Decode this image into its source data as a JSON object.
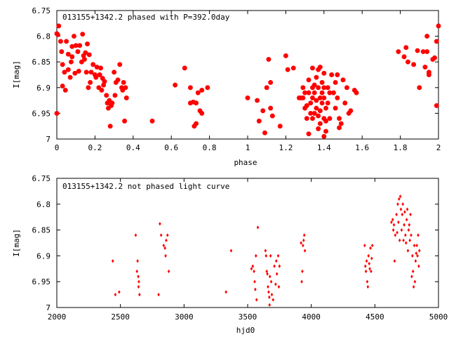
{
  "chart_data": [
    {
      "type": "scatter",
      "title": "013155+1342.2 phased with P=392.0day",
      "xlabel": "phase",
      "ylabel": "I[mag]",
      "xlim": [
        0,
        2
      ],
      "ylim": [
        6.75,
        7
      ],
      "y_inverted": true,
      "grid": false,
      "marker": "filled-octagon",
      "color": "#ff0000",
      "xticks": [
        "0",
        "0.2",
        "0.4",
        "0.6",
        "0.8",
        "1",
        "1.2",
        "1.4",
        "1.6",
        "1.8",
        "2"
      ],
      "yticks": [
        "6.75",
        "6.8",
        "6.85",
        "6.9",
        "6.95",
        "7"
      ],
      "points": [
        [
          0.0,
          6.95
        ],
        [
          0.0,
          6.795
        ],
        [
          0.005,
          6.797
        ],
        [
          0.01,
          6.78
        ],
        [
          0.02,
          6.81
        ],
        [
          0.025,
          6.83
        ],
        [
          0.03,
          6.855
        ],
        [
          0.03,
          6.897
        ],
        [
          0.04,
          6.87
        ],
        [
          0.045,
          6.905
        ],
        [
          0.05,
          6.81
        ],
        [
          0.06,
          6.835
        ],
        [
          0.06,
          6.865
        ],
        [
          0.07,
          6.88
        ],
        [
          0.075,
          6.85
        ],
        [
          0.08,
          6.82
        ],
        [
          0.08,
          6.84
        ],
        [
          0.09,
          6.8
        ],
        [
          0.095,
          6.872
        ],
        [
          0.1,
          6.818
        ],
        [
          0.11,
          6.83
        ],
        [
          0.115,
          6.868
        ],
        [
          0.12,
          6.818
        ],
        [
          0.13,
          6.85
        ],
        [
          0.135,
          6.796
        ],
        [
          0.14,
          6.838
        ],
        [
          0.145,
          6.845
        ],
        [
          0.15,
          6.832
        ],
        [
          0.155,
          6.87
        ],
        [
          0.16,
          6.815
        ],
        [
          0.165,
          6.9
        ],
        [
          0.17,
          6.836
        ],
        [
          0.175,
          6.89
        ],
        [
          0.18,
          6.87
        ],
        [
          0.19,
          6.855
        ],
        [
          0.2,
          6.875
        ],
        [
          0.205,
          6.88
        ],
        [
          0.21,
          6.86
        ],
        [
          0.22,
          6.9
        ],
        [
          0.225,
          6.875
        ],
        [
          0.23,
          6.862
        ],
        [
          0.235,
          6.905
        ],
        [
          0.24,
          6.882
        ],
        [
          0.245,
          6.895
        ],
        [
          0.25,
          6.888
        ],
        [
          0.26,
          6.915
        ],
        [
          0.265,
          6.93
        ],
        [
          0.27,
          6.94
        ],
        [
          0.275,
          6.925
        ],
        [
          0.28,
          6.975
        ],
        [
          0.285,
          6.935
        ],
        [
          0.29,
          6.93
        ],
        [
          0.3,
          6.87
        ],
        [
          0.305,
          6.915
        ],
        [
          0.31,
          6.89
        ],
        [
          0.32,
          6.885
        ],
        [
          0.33,
          6.855
        ],
        [
          0.34,
          6.9
        ],
        [
          0.345,
          6.905
        ],
        [
          0.35,
          6.89
        ],
        [
          0.355,
          6.965
        ],
        [
          0.36,
          6.9
        ],
        [
          0.365,
          6.92
        ],
        [
          0.5,
          6.965
        ],
        [
          0.62,
          6.895
        ],
        [
          0.67,
          6.862
        ],
        [
          0.7,
          6.9
        ],
        [
          0.7,
          6.93
        ],
        [
          0.715,
          6.928
        ],
        [
          0.72,
          6.975
        ],
        [
          0.73,
          6.93
        ],
        [
          0.73,
          6.97
        ],
        [
          0.74,
          6.91
        ],
        [
          0.75,
          6.945
        ],
        [
          0.76,
          6.95
        ],
        [
          0.76,
          6.905
        ],
        [
          0.79,
          6.9
        ],
        [
          1.0,
          6.92
        ],
        [
          1.05,
          6.925
        ],
        [
          1.06,
          6.965
        ],
        [
          1.08,
          6.945
        ],
        [
          1.09,
          6.988
        ],
        [
          1.1,
          6.9
        ],
        [
          1.11,
          6.845
        ],
        [
          1.12,
          6.89
        ],
        [
          1.12,
          6.94
        ],
        [
          1.13,
          6.955
        ],
        [
          1.17,
          6.975
        ],
        [
          1.2,
          6.838
        ],
        [
          1.21,
          6.865
        ],
        [
          1.24,
          6.862
        ],
        [
          1.27,
          6.92
        ],
        [
          1.28,
          6.92
        ],
        [
          1.29,
          6.9
        ],
        [
          1.29,
          6.92
        ],
        [
          1.3,
          6.91
        ],
        [
          1.3,
          6.94
        ],
        [
          1.31,
          6.935
        ],
        [
          1.31,
          6.96
        ],
        [
          1.32,
          6.885
        ],
        [
          1.32,
          6.91
        ],
        [
          1.32,
          6.99
        ],
        [
          1.33,
          6.95
        ],
        [
          1.33,
          6.93
        ],
        [
          1.34,
          6.862
        ],
        [
          1.34,
          6.9
        ],
        [
          1.34,
          6.92
        ],
        [
          1.34,
          6.96
        ],
        [
          1.35,
          6.895
        ],
        [
          1.35,
          6.91
        ],
        [
          1.35,
          6.95
        ],
        [
          1.36,
          6.88
        ],
        [
          1.36,
          6.925
        ],
        [
          1.36,
          6.94
        ],
        [
          1.37,
          6.865
        ],
        [
          1.37,
          6.9
        ],
        [
          1.37,
          6.955
        ],
        [
          1.37,
          6.98
        ],
        [
          1.38,
          6.86
        ],
        [
          1.38,
          6.92
        ],
        [
          1.38,
          6.945
        ],
        [
          1.38,
          6.97
        ],
        [
          1.39,
          6.89
        ],
        [
          1.39,
          6.91
        ],
        [
          1.39,
          6.93
        ],
        [
          1.4,
          6.872
        ],
        [
          1.4,
          6.9
        ],
        [
          1.4,
          6.92
        ],
        [
          1.4,
          6.96
        ],
        [
          1.4,
          6.995
        ],
        [
          1.41,
          6.94
        ],
        [
          1.41,
          6.985
        ],
        [
          1.41,
          6.965
        ],
        [
          1.42,
          6.9
        ],
        [
          1.42,
          6.93
        ],
        [
          1.43,
          6.91
        ],
        [
          1.43,
          6.96
        ],
        [
          1.44,
          6.875
        ],
        [
          1.45,
          6.91
        ],
        [
          1.46,
          6.89
        ],
        [
          1.46,
          6.94
        ],
        [
          1.47,
          6.875
        ],
        [
          1.47,
          6.92
        ],
        [
          1.48,
          6.96
        ],
        [
          1.48,
          6.978
        ],
        [
          1.49,
          6.97
        ],
        [
          1.5,
          6.885
        ],
        [
          1.51,
          6.93
        ],
        [
          1.52,
          6.9
        ],
        [
          1.53,
          6.95
        ],
        [
          1.54,
          6.945
        ],
        [
          1.56,
          6.905
        ],
        [
          1.57,
          6.91
        ],
        [
          1.79,
          6.83
        ],
        [
          1.82,
          6.84
        ],
        [
          1.83,
          6.822
        ],
        [
          1.84,
          6.85
        ],
        [
          1.87,
          6.855
        ],
        [
          1.89,
          6.828
        ],
        [
          1.9,
          6.9
        ],
        [
          1.92,
          6.83
        ],
        [
          1.93,
          6.86
        ],
        [
          1.94,
          6.83
        ],
        [
          1.95,
          6.875
        ],
        [
          1.95,
          6.87
        ],
        [
          1.97,
          6.845
        ],
        [
          1.98,
          6.842
        ],
        [
          1.99,
          6.935
        ],
        [
          1.99,
          6.81
        ],
        [
          2.0,
          6.78
        ],
        [
          1.94,
          6.8
        ]
      ]
    },
    {
      "type": "scatter",
      "title": "013155+1342.2 not phased light curve",
      "xlabel": "hjd0",
      "ylabel": "I[mag]",
      "xlim": [
        2000,
        5000
      ],
      "ylim": [
        6.75,
        7
      ],
      "y_inverted": true,
      "grid": false,
      "marker": "small-diamond",
      "color": "#ff0000",
      "xticks": [
        "2000",
        "2500",
        "3000",
        "3500",
        "4000",
        "4500",
        "5000"
      ],
      "yticks": [
        "6.75",
        "6.8",
        "6.85",
        "6.9",
        "6.95",
        "7"
      ],
      "points": [
        [
          2440,
          6.91
        ],
        [
          2460,
          6.975
        ],
        [
          2490,
          6.97
        ],
        [
          2620,
          6.86
        ],
        [
          2630,
          6.93
        ],
        [
          2635,
          6.91
        ],
        [
          2640,
          6.94
        ],
        [
          2642,
          6.96
        ],
        [
          2645,
          6.95
        ],
        [
          2650,
          6.975
        ],
        [
          2800,
          6.975
        ],
        [
          2810,
          6.838
        ],
        [
          2820,
          6.86
        ],
        [
          2840,
          6.88
        ],
        [
          2850,
          6.885
        ],
        [
          2855,
          6.9
        ],
        [
          2860,
          6.87
        ],
        [
          2870,
          6.86
        ],
        [
          2880,
          6.93
        ],
        [
          3330,
          6.97
        ],
        [
          3370,
          6.89
        ],
        [
          3530,
          6.925
        ],
        [
          3540,
          6.92
        ],
        [
          3550,
          6.93
        ],
        [
          3555,
          6.95
        ],
        [
          3560,
          6.965
        ],
        [
          3565,
          6.9
        ],
        [
          3570,
          6.985
        ],
        [
          3580,
          6.845
        ],
        [
          3640,
          6.89
        ],
        [
          3645,
          6.9
        ],
        [
          3650,
          6.93
        ],
        [
          3655,
          6.935
        ],
        [
          3660,
          6.96
        ],
        [
          3665,
          6.97
        ],
        [
          3670,
          6.98
        ],
        [
          3672,
          6.995
        ],
        [
          3675,
          6.94
        ],
        [
          3680,
          6.9
        ],
        [
          3685,
          6.95
        ],
        [
          3690,
          6.975
        ],
        [
          3700,
          6.985
        ],
        [
          3710,
          6.92
        ],
        [
          3720,
          6.955
        ],
        [
          3725,
          6.91
        ],
        [
          3730,
          6.935
        ],
        [
          3740,
          6.9
        ],
        [
          3745,
          6.96
        ],
        [
          3750,
          6.92
        ],
        [
          3920,
          6.875
        ],
        [
          3925,
          6.95
        ],
        [
          3930,
          6.93
        ],
        [
          3935,
          6.88
        ],
        [
          3940,
          6.87
        ],
        [
          3945,
          6.86
        ],
        [
          3950,
          6.89
        ],
        [
          4420,
          6.88
        ],
        [
          4425,
          6.92
        ],
        [
          4430,
          6.93
        ],
        [
          4435,
          6.91
        ],
        [
          4440,
          6.95
        ],
        [
          4445,
          6.96
        ],
        [
          4450,
          6.9
        ],
        [
          4455,
          6.915
        ],
        [
          4460,
          6.925
        ],
        [
          4465,
          6.885
        ],
        [
          4470,
          6.93
        ],
        [
          4475,
          6.905
        ],
        [
          4480,
          6.88
        ],
        [
          4630,
          6.835
        ],
        [
          4640,
          6.83
        ],
        [
          4645,
          6.85
        ],
        [
          4650,
          6.84
        ],
        [
          4655,
          6.91
        ],
        [
          4660,
          6.86
        ],
        [
          4670,
          6.82
        ],
        [
          4675,
          6.855
        ],
        [
          4680,
          6.8
        ],
        [
          4685,
          6.835
        ],
        [
          4690,
          6.79
        ],
        [
          4695,
          6.87
        ],
        [
          4700,
          6.785
        ],
        [
          4705,
          6.81
        ],
        [
          4710,
          6.85
        ],
        [
          4715,
          6.82
        ],
        [
          4720,
          6.8
        ],
        [
          4725,
          6.87
        ],
        [
          4730,
          6.84
        ],
        [
          4735,
          6.815
        ],
        [
          4740,
          6.86
        ],
        [
          4745,
          6.875
        ],
        [
          4750,
          6.83
        ],
        [
          4755,
          6.81
        ],
        [
          4760,
          6.89
        ],
        [
          4765,
          6.85
        ],
        [
          4770,
          6.84
        ],
        [
          4775,
          6.87
        ],
        [
          4780,
          6.82
        ],
        [
          4785,
          6.86
        ],
        [
          4790,
          6.94
        ],
        [
          4795,
          6.9
        ],
        [
          4800,
          6.93
        ],
        [
          4805,
          6.96
        ],
        [
          4810,
          6.88
        ],
        [
          4815,
          6.95
        ],
        [
          4820,
          6.91
        ],
        [
          4825,
          6.895
        ],
        [
          4830,
          6.88
        ],
        [
          4835,
          6.9
        ],
        [
          4840,
          6.86
        ],
        [
          4845,
          6.92
        ],
        [
          4850,
          6.89
        ]
      ]
    }
  ]
}
